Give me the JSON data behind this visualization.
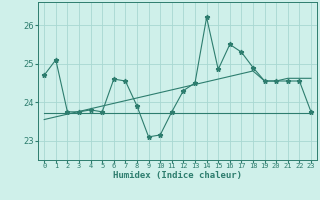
{
  "x": [
    0,
    1,
    2,
    3,
    4,
    5,
    6,
    7,
    8,
    9,
    10,
    11,
    12,
    13,
    14,
    15,
    16,
    17,
    18,
    19,
    20,
    21,
    22,
    23
  ],
  "y_line": [
    24.7,
    25.1,
    23.75,
    23.75,
    23.8,
    23.75,
    24.6,
    24.55,
    23.9,
    23.1,
    23.15,
    23.75,
    24.3,
    24.5,
    26.2,
    24.85,
    25.5,
    25.3,
    24.9,
    24.55,
    24.55,
    24.55,
    24.55,
    23.75
  ],
  "y_trend1": [
    23.55,
    23.62,
    23.69,
    23.76,
    23.83,
    23.9,
    23.97,
    24.04,
    24.11,
    24.18,
    24.25,
    24.32,
    24.39,
    24.46,
    24.53,
    24.6,
    24.67,
    24.74,
    24.81,
    24.55,
    24.55,
    24.62,
    24.62,
    24.62
  ],
  "y_trend2": [
    23.73,
    23.73,
    23.73,
    23.73,
    23.73,
    23.73,
    23.73,
    23.73,
    23.73,
    23.73,
    23.73,
    23.73,
    23.73,
    23.73,
    23.73,
    23.73,
    23.73,
    23.73,
    23.73,
    23.73,
    23.73,
    23.73,
    23.73,
    23.73
  ],
  "line_color": "#2d7d6e",
  "bg_color": "#cff0ea",
  "grid_color": "#a8d8d2",
  "xlabel": "Humidex (Indice chaleur)",
  "ylim": [
    22.5,
    26.6
  ],
  "yticks": [
    23,
    24,
    25,
    26
  ],
  "marker": "*",
  "marker_size": 3.5,
  "linewidth": 0.8
}
